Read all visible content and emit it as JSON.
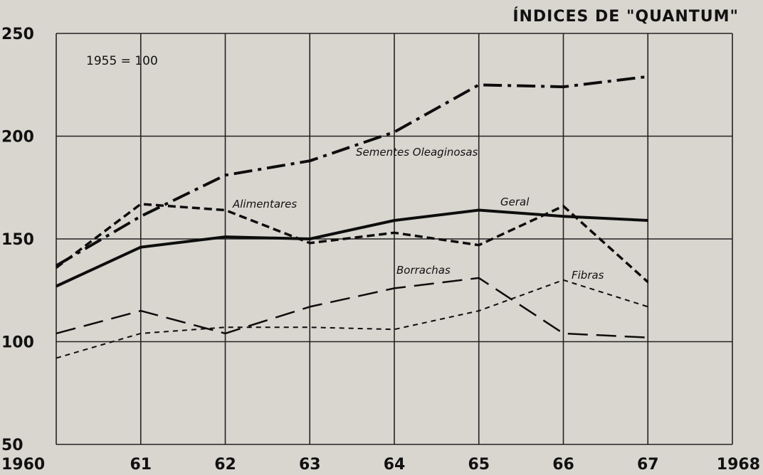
{
  "chart_data": {
    "type": "line",
    "title": "ÍNDICES DE \"QUANTUM\"",
    "base_note": "1955 = 100",
    "x_tick_labels": [
      "1960",
      "61",
      "62",
      "63",
      "64",
      "65",
      "66",
      "67",
      "1968"
    ],
    "x": [
      1960,
      1961,
      1962,
      1963,
      1964,
      1965,
      1966,
      1967
    ],
    "xlim": [
      1960,
      1968
    ],
    "y_tick_labels": [
      "50",
      "100",
      "150",
      "200",
      "250"
    ],
    "y_ticks": [
      50,
      100,
      150,
      200,
      250
    ],
    "ylim": [
      50,
      250
    ],
    "grid": true,
    "series": [
      {
        "name": "Sementes Oleaginosas",
        "style": "dash-dot-thick",
        "values": [
          137,
          161,
          181,
          188,
          202,
          225,
          224,
          229
        ]
      },
      {
        "name": "Alimentares",
        "style": "short-dash-thick",
        "values": [
          136,
          167,
          164,
          148,
          153,
          147,
          166,
          129
        ]
      },
      {
        "name": "Geral",
        "style": "solid-thick",
        "values": [
          127,
          146,
          151,
          150,
          159,
          164,
          161,
          159
        ]
      },
      {
        "name": "Borrachas",
        "style": "long-dash",
        "values": [
          104,
          115,
          104,
          117,
          126,
          131,
          104,
          102
        ]
      },
      {
        "name": "Fibras",
        "style": "short-dash-thin",
        "values": [
          92,
          104,
          107,
          107,
          106,
          115,
          130,
          117
        ]
      }
    ]
  }
}
